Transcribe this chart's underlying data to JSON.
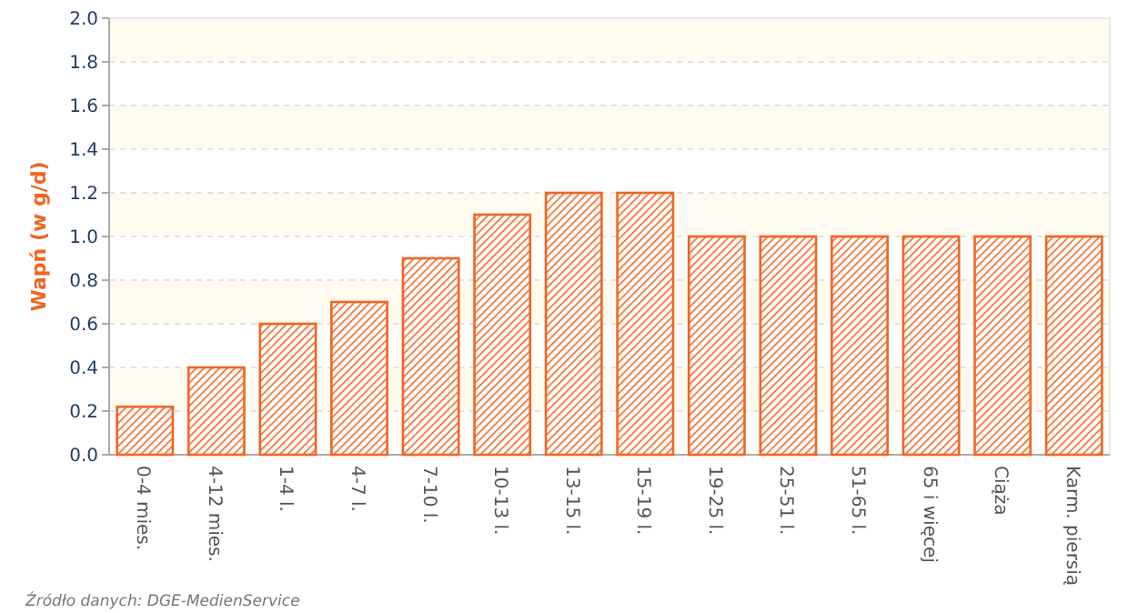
{
  "chart_data": {
    "type": "bar",
    "ylabel": "Wapń (w g/d)",
    "categories": [
      "0-4 mies.",
      "4-12 mies.",
      "1-4 l.",
      "4-7 l.",
      "7-10 l.",
      "10-13 l.",
      "13-15 l.",
      "15-19 l.",
      "19-25 l.",
      "25-51 l.",
      "51-65 l.",
      "65 i więcej",
      "Ciąża",
      "Karm. piersią"
    ],
    "values": [
      0.22,
      0.4,
      0.6,
      0.7,
      0.9,
      1.1,
      1.2,
      1.2,
      1.0,
      1.0,
      1.0,
      1.0,
      1.0,
      1.0
    ],
    "color": "#f26522",
    "ylim": [
      0,
      2
    ],
    "yticks": [
      {
        "value": 0,
        "label": "0.0"
      },
      0.2,
      0.4,
      0.6,
      0.8,
      {
        "value": 1,
        "label": "1.0"
      },
      1.2,
      1.4,
      1.6,
      1.8,
      {
        "value": 2,
        "label": "2.0"
      }
    ],
    "grid": "y",
    "annotations": [
      "Źródło danych: DGE-MedienService"
    ]
  }
}
